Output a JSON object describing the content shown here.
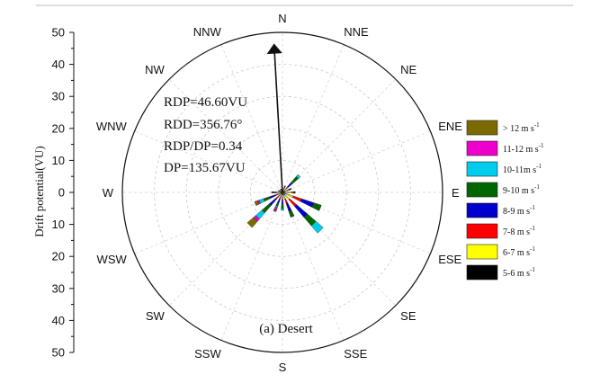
{
  "chart_data": {
    "type": "polar-stacked-bar",
    "caption": "(a) Desert",
    "ylabel": "Drift potential(VU)",
    "rmax": 50,
    "y_ticks": [
      "50",
      "40",
      "30",
      "20",
      "10",
      "0",
      "10",
      "20",
      "30",
      "40",
      "50"
    ],
    "directions": [
      "N",
      "NNE",
      "NE",
      "ENE",
      "E",
      "ESE",
      "SE",
      "SSE",
      "S",
      "SSW",
      "SW",
      "WSW",
      "W",
      "WNW",
      "NW",
      "NNW"
    ],
    "stats": [
      "RDP=46.60VU",
      "RDD=356.76°",
      "RDP/DP=0.34",
      "DP=135.67VU"
    ],
    "resultant": {
      "direction_deg": 356.76,
      "magnitude": 46.6
    },
    "series": [
      {
        "name": "5-6 m s-1",
        "label": "5-6 m s",
        "sup": "-1",
        "color": "#000000",
        "values": [
          0.5,
          0.6,
          0.7,
          0.8,
          1.0,
          1.2,
          1.2,
          1.0,
          0.8,
          0.7,
          0.6,
          0.6,
          0.8,
          0.6,
          0.5,
          0.5
        ]
      },
      {
        "name": "6-7 m s-1",
        "label": "6-7 m s",
        "sup": "-1",
        "color": "#ffff00",
        "values": [
          0.3,
          0.5,
          0.8,
          0.8,
          2.0,
          2.3,
          1.8,
          1.2,
          0.8,
          0.6,
          0.6,
          0.8,
          0.4,
          0.3,
          0.3,
          0.3
        ]
      },
      {
        "name": "7-8 m s-1",
        "label": "7-8 m s",
        "sup": "-1",
        "color": "#ff0000",
        "values": [
          0.2,
          0.5,
          0.8,
          0.6,
          0.5,
          2.8,
          2.8,
          1.5,
          0.8,
          0.8,
          1.5,
          1.0,
          0.4,
          0.2,
          0.2,
          0.2
        ]
      },
      {
        "name": "8-9 m s-1",
        "label": "8-9 m s",
        "sup": "-1",
        "color": "#0000cc",
        "values": [
          0.1,
          0.4,
          1.8,
          0.5,
          0.3,
          4.0,
          4.5,
          2.5,
          1.2,
          1.5,
          2.8,
          1.8,
          0.6,
          0.2,
          0.1,
          0.1
        ]
      },
      {
        "name": "9-10 m s-1",
        "label": "9-10 m s",
        "sup": "-1",
        "color": "#006600",
        "values": [
          0.1,
          0.2,
          2.5,
          0.3,
          0.2,
          2.5,
          3.5,
          2.0,
          1.5,
          1.0,
          3.0,
          2.0,
          0.5,
          0.1,
          0.1,
          0.1
        ]
      },
      {
        "name": "10-11m s-1",
        "label": "10-11m s",
        "sup": "-1",
        "color": "#00ccee",
        "values": [
          0,
          0,
          0.8,
          0,
          0,
          0,
          3.0,
          0,
          0.5,
          0.5,
          2.5,
          1.5,
          0.2,
          0,
          0,
          0
        ]
      },
      {
        "name": "11-12 m s-1",
        "label": "11-12 m s",
        "sup": "-1",
        "color": "#ee00cc",
        "values": [
          0,
          0,
          0,
          0,
          0,
          0,
          0,
          0,
          0,
          0.8,
          1.0,
          0.5,
          0.2,
          0,
          0,
          0
        ]
      },
      {
        "name": "> 12 m s-1",
        "label": "> 12 m s",
        "sup": "-1",
        "color": "#7a6a00",
        "values": [
          0,
          0,
          0,
          0,
          0,
          0,
          0,
          0,
          0,
          0.5,
          2.5,
          1.0,
          0.3,
          0,
          0,
          0
        ]
      }
    ]
  }
}
